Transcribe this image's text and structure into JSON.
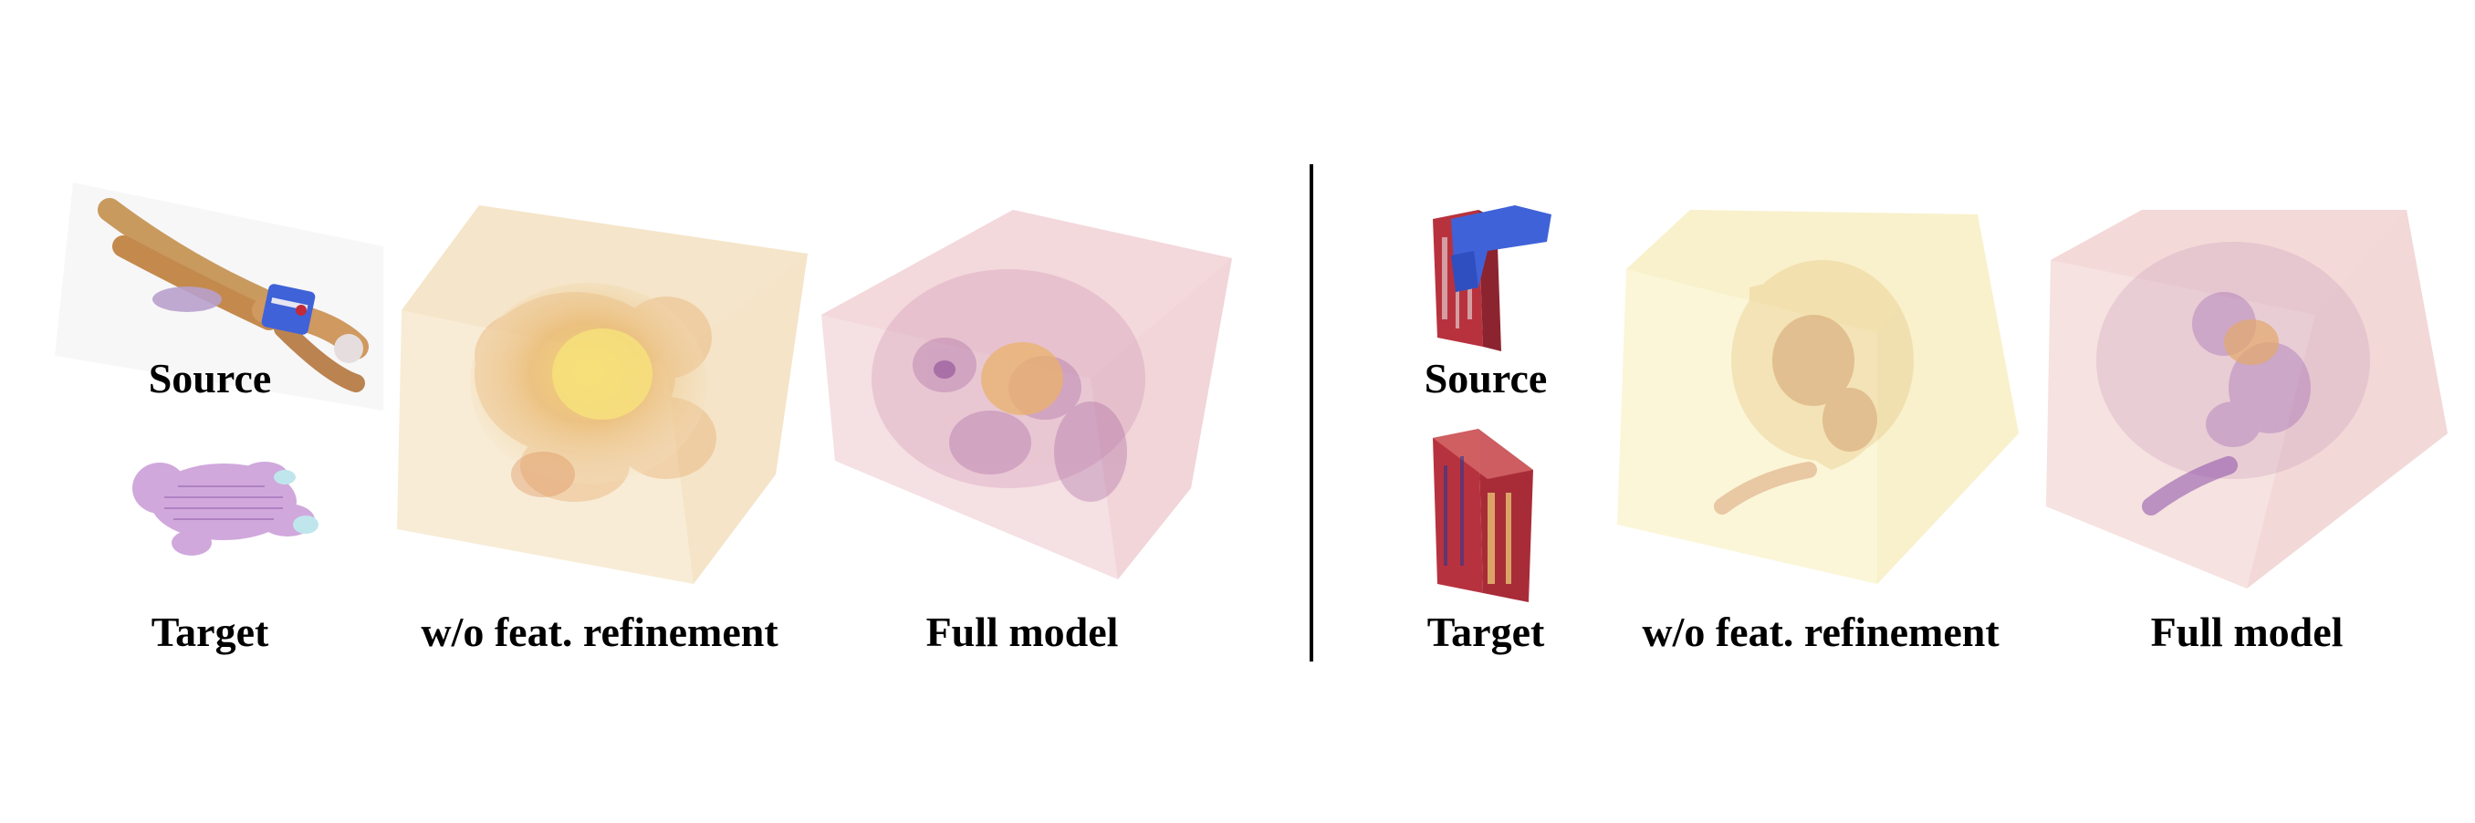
{
  "figure": {
    "left": {
      "source_label": "Source",
      "target_label": "Target",
      "ablation_label": "w/o feat. refinement",
      "full_label": "Full model",
      "ablation_colormap": [
        "#f4e4c4",
        "#e9b868",
        "#f5da70"
      ],
      "full_colormap": [
        "#f1d3d8",
        "#b06aa0",
        "#e8b06a"
      ]
    },
    "right": {
      "source_label": "Source",
      "target_label": "Target",
      "ablation_label": "w/o feat. refinement",
      "full_label": "Full model",
      "ablation_colormap": [
        "#fbf6d2",
        "#e2b268",
        "#c27a5a"
      ],
      "full_colormap": [
        "#f4dbd9",
        "#a46ab0",
        "#d89a6a"
      ]
    }
  }
}
